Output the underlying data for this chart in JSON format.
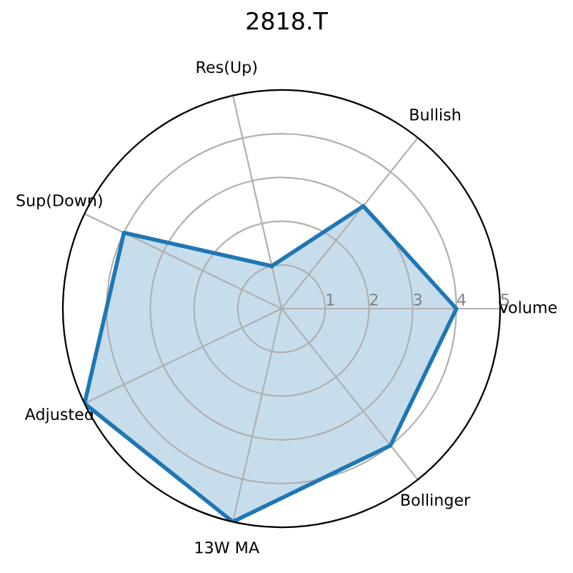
{
  "chart_data": {
    "type": "radar",
    "title": "2818.T",
    "categories": [
      "Res(Up)",
      "Bullish",
      "Volume",
      "Bollinger",
      "13W MA",
      "Adjusted",
      "Sup(Down)"
    ],
    "series": [
      {
        "color": "#1f77b4",
        "values": [
          1,
          3,
          4,
          4,
          5,
          5,
          4
        ]
      }
    ],
    "ylim": [
      0,
      5
    ],
    "yticks": [
      1,
      2,
      3,
      4,
      5
    ],
    "grid": true
  }
}
